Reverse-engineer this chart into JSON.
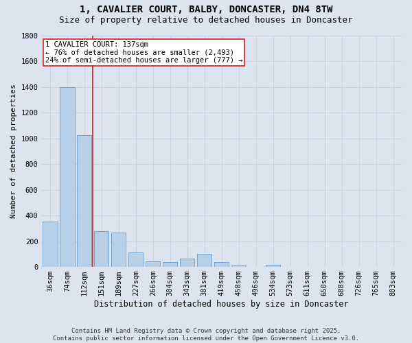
{
  "title": "1, CAVALIER COURT, BALBY, DONCASTER, DN4 8TW",
  "subtitle": "Size of property relative to detached houses in Doncaster",
  "xlabel": "Distribution of detached houses by size in Doncaster",
  "ylabel": "Number of detached properties",
  "categories": [
    "36sqm",
    "74sqm",
    "112sqm",
    "151sqm",
    "189sqm",
    "227sqm",
    "266sqm",
    "304sqm",
    "343sqm",
    "381sqm",
    "419sqm",
    "458sqm",
    "496sqm",
    "534sqm",
    "573sqm",
    "611sqm",
    "650sqm",
    "688sqm",
    "726sqm",
    "765sqm",
    "803sqm"
  ],
  "values": [
    350,
    1400,
    1025,
    280,
    265,
    110,
    45,
    40,
    65,
    100,
    40,
    10,
    0,
    15,
    0,
    0,
    0,
    0,
    0,
    0,
    0
  ],
  "bar_color": "#b8cfe8",
  "bar_edgecolor": "#6699cc",
  "grid_color": "#c8d4e4",
  "background_color": "#dce4f0",
  "vline_x": 2.5,
  "vline_color": "#cc2222",
  "annotation_text": "1 CAVALIER COURT: 137sqm\n← 76% of detached houses are smaller (2,493)\n24% of semi-detached houses are larger (777) →",
  "annotation_box_facecolor": "#ffffff",
  "annotation_box_edgecolor": "#cc2222",
  "ylim": [
    0,
    1800
  ],
  "yticks": [
    0,
    200,
    400,
    600,
    800,
    1000,
    1200,
    1400,
    1600,
    1800
  ],
  "footer": "Contains HM Land Registry data © Crown copyright and database right 2025.\nContains public sector information licensed under the Open Government Licence v3.0.",
  "title_fontsize": 10,
  "subtitle_fontsize": 9,
  "xlabel_fontsize": 8.5,
  "ylabel_fontsize": 8,
  "tick_fontsize": 7.5,
  "annotation_fontsize": 7.5,
  "footer_fontsize": 6.5
}
